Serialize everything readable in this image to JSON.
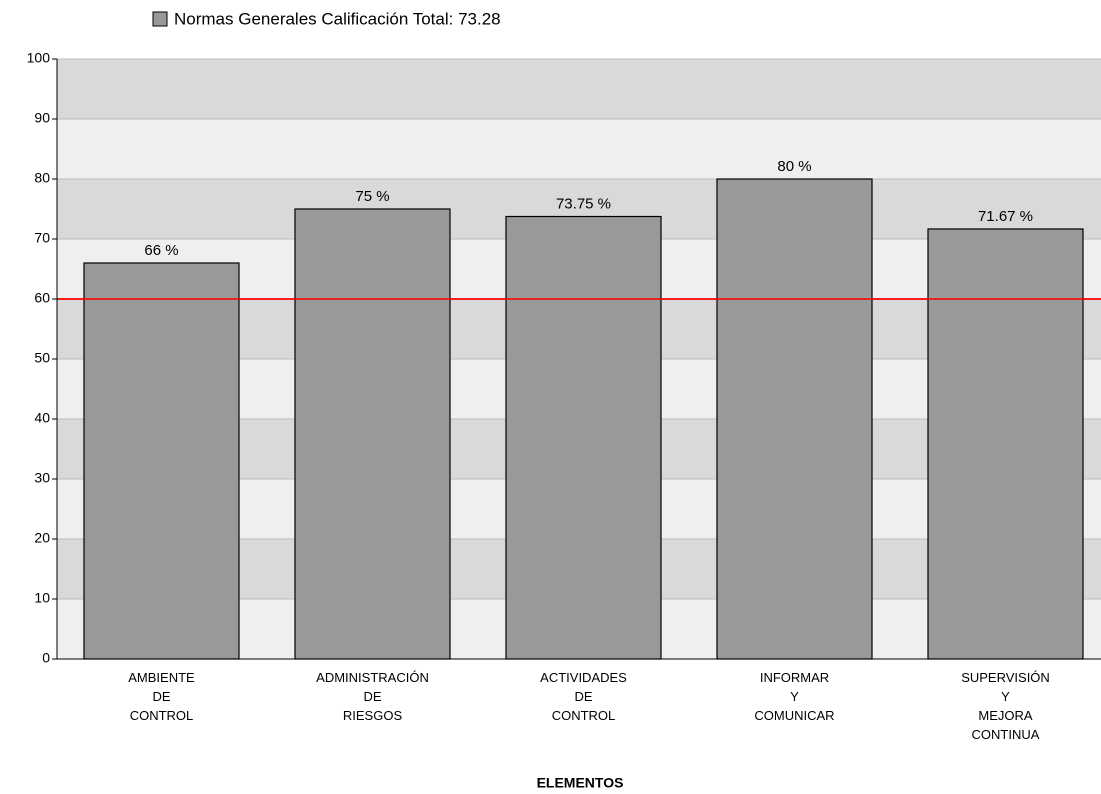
{
  "chart_data": {
    "type": "bar",
    "categories": [
      [
        "AMBIENTE",
        "DE",
        "CONTROL"
      ],
      [
        "ADMINISTRACIÓN",
        "DE",
        "RIESGOS"
      ],
      [
        "ACTIVIDADES",
        "DE",
        "CONTROL"
      ],
      [
        "INFORMAR",
        "Y",
        "COMUNICAR"
      ],
      [
        "SUPERVISIÓN",
        "Y",
        "MEJORA",
        "CONTINUA"
      ]
    ],
    "series": [
      {
        "name": "Normas Generales Calificación Total: 73.28",
        "color": "#999999",
        "values": [
          66,
          75,
          73.75,
          80,
          71.67
        ],
        "value_labels": [
          "66 %",
          "75 %",
          "73.75 %",
          "80 %",
          "71.67 %"
        ]
      }
    ],
    "x_label": "ELEMENTOS",
    "threshold": 60,
    "threshold_color": "#ff0000",
    "ylim": [
      0,
      100
    ],
    "yticks": [
      0,
      10,
      20,
      30,
      40,
      50,
      60,
      70,
      80,
      90,
      100
    ],
    "grid": true
  }
}
